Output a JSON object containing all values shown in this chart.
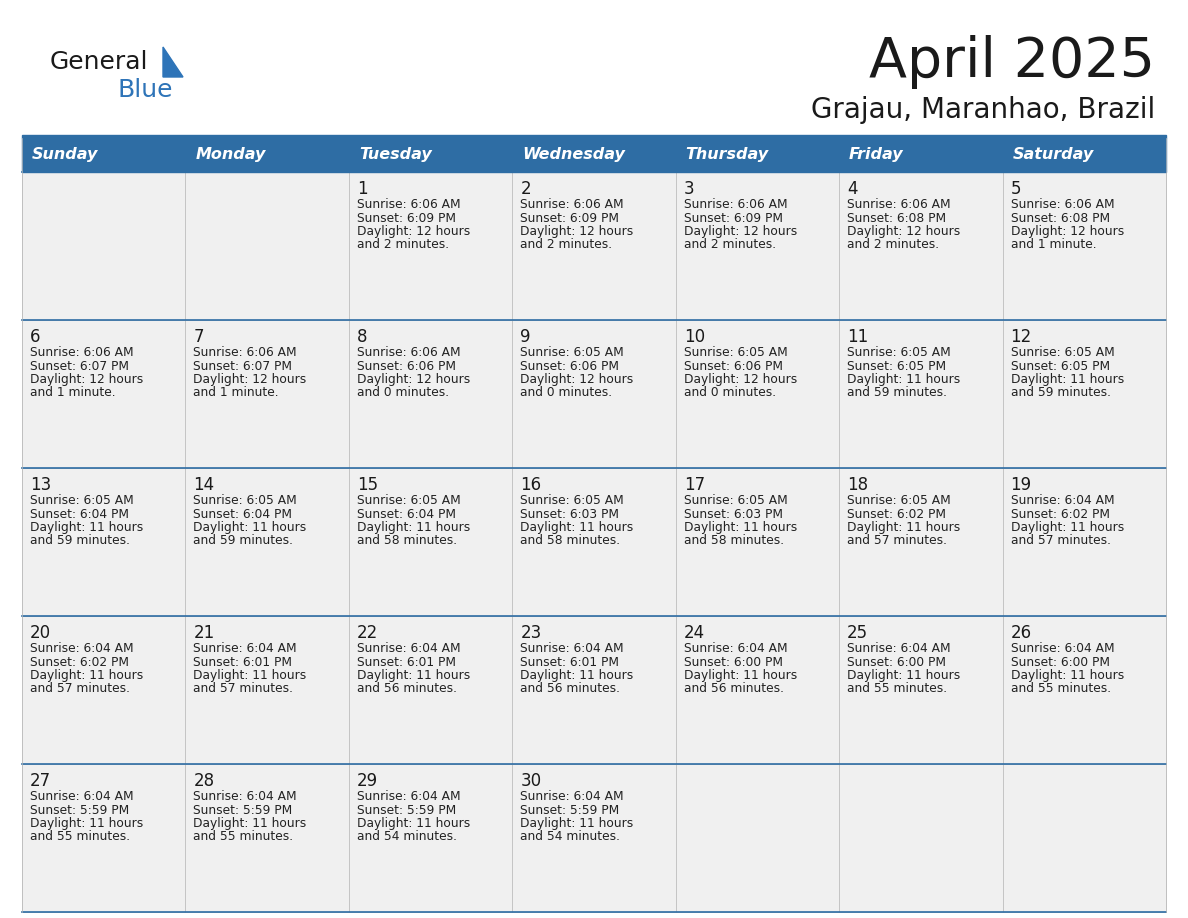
{
  "title": "April 2025",
  "subtitle": "Grajau, Maranhao, Brazil",
  "header_bg": "#2E6DA4",
  "header_text_color": "#FFFFFF",
  "cell_bg": "#F0F0F0",
  "day_headers": [
    "Sunday",
    "Monday",
    "Tuesday",
    "Wednesday",
    "Thursday",
    "Friday",
    "Saturday"
  ],
  "logo_general_color": "#1a1a1a",
  "logo_blue_color": "#2E74B8",
  "weeks": [
    [
      {
        "day": "",
        "text": ""
      },
      {
        "day": "",
        "text": ""
      },
      {
        "day": "1",
        "text": "Sunrise: 6:06 AM\nSunset: 6:09 PM\nDaylight: 12 hours\nand 2 minutes."
      },
      {
        "day": "2",
        "text": "Sunrise: 6:06 AM\nSunset: 6:09 PM\nDaylight: 12 hours\nand 2 minutes."
      },
      {
        "day": "3",
        "text": "Sunrise: 6:06 AM\nSunset: 6:09 PM\nDaylight: 12 hours\nand 2 minutes."
      },
      {
        "day": "4",
        "text": "Sunrise: 6:06 AM\nSunset: 6:08 PM\nDaylight: 12 hours\nand 2 minutes."
      },
      {
        "day": "5",
        "text": "Sunrise: 6:06 AM\nSunset: 6:08 PM\nDaylight: 12 hours\nand 1 minute."
      }
    ],
    [
      {
        "day": "6",
        "text": "Sunrise: 6:06 AM\nSunset: 6:07 PM\nDaylight: 12 hours\nand 1 minute."
      },
      {
        "day": "7",
        "text": "Sunrise: 6:06 AM\nSunset: 6:07 PM\nDaylight: 12 hours\nand 1 minute."
      },
      {
        "day": "8",
        "text": "Sunrise: 6:06 AM\nSunset: 6:06 PM\nDaylight: 12 hours\nand 0 minutes."
      },
      {
        "day": "9",
        "text": "Sunrise: 6:05 AM\nSunset: 6:06 PM\nDaylight: 12 hours\nand 0 minutes."
      },
      {
        "day": "10",
        "text": "Sunrise: 6:05 AM\nSunset: 6:06 PM\nDaylight: 12 hours\nand 0 minutes."
      },
      {
        "day": "11",
        "text": "Sunrise: 6:05 AM\nSunset: 6:05 PM\nDaylight: 11 hours\nand 59 minutes."
      },
      {
        "day": "12",
        "text": "Sunrise: 6:05 AM\nSunset: 6:05 PM\nDaylight: 11 hours\nand 59 minutes."
      }
    ],
    [
      {
        "day": "13",
        "text": "Sunrise: 6:05 AM\nSunset: 6:04 PM\nDaylight: 11 hours\nand 59 minutes."
      },
      {
        "day": "14",
        "text": "Sunrise: 6:05 AM\nSunset: 6:04 PM\nDaylight: 11 hours\nand 59 minutes."
      },
      {
        "day": "15",
        "text": "Sunrise: 6:05 AM\nSunset: 6:04 PM\nDaylight: 11 hours\nand 58 minutes."
      },
      {
        "day": "16",
        "text": "Sunrise: 6:05 AM\nSunset: 6:03 PM\nDaylight: 11 hours\nand 58 minutes."
      },
      {
        "day": "17",
        "text": "Sunrise: 6:05 AM\nSunset: 6:03 PM\nDaylight: 11 hours\nand 58 minutes."
      },
      {
        "day": "18",
        "text": "Sunrise: 6:05 AM\nSunset: 6:02 PM\nDaylight: 11 hours\nand 57 minutes."
      },
      {
        "day": "19",
        "text": "Sunrise: 6:04 AM\nSunset: 6:02 PM\nDaylight: 11 hours\nand 57 minutes."
      }
    ],
    [
      {
        "day": "20",
        "text": "Sunrise: 6:04 AM\nSunset: 6:02 PM\nDaylight: 11 hours\nand 57 minutes."
      },
      {
        "day": "21",
        "text": "Sunrise: 6:04 AM\nSunset: 6:01 PM\nDaylight: 11 hours\nand 57 minutes."
      },
      {
        "day": "22",
        "text": "Sunrise: 6:04 AM\nSunset: 6:01 PM\nDaylight: 11 hours\nand 56 minutes."
      },
      {
        "day": "23",
        "text": "Sunrise: 6:04 AM\nSunset: 6:01 PM\nDaylight: 11 hours\nand 56 minutes."
      },
      {
        "day": "24",
        "text": "Sunrise: 6:04 AM\nSunset: 6:00 PM\nDaylight: 11 hours\nand 56 minutes."
      },
      {
        "day": "25",
        "text": "Sunrise: 6:04 AM\nSunset: 6:00 PM\nDaylight: 11 hours\nand 55 minutes."
      },
      {
        "day": "26",
        "text": "Sunrise: 6:04 AM\nSunset: 6:00 PM\nDaylight: 11 hours\nand 55 minutes."
      }
    ],
    [
      {
        "day": "27",
        "text": "Sunrise: 6:04 AM\nSunset: 5:59 PM\nDaylight: 11 hours\nand 55 minutes."
      },
      {
        "day": "28",
        "text": "Sunrise: 6:04 AM\nSunset: 5:59 PM\nDaylight: 11 hours\nand 55 minutes."
      },
      {
        "day": "29",
        "text": "Sunrise: 6:04 AM\nSunset: 5:59 PM\nDaylight: 11 hours\nand 54 minutes."
      },
      {
        "day": "30",
        "text": "Sunrise: 6:04 AM\nSunset: 5:59 PM\nDaylight: 11 hours\nand 54 minutes."
      },
      {
        "day": "",
        "text": ""
      },
      {
        "day": "",
        "text": ""
      },
      {
        "day": "",
        "text": ""
      }
    ]
  ]
}
